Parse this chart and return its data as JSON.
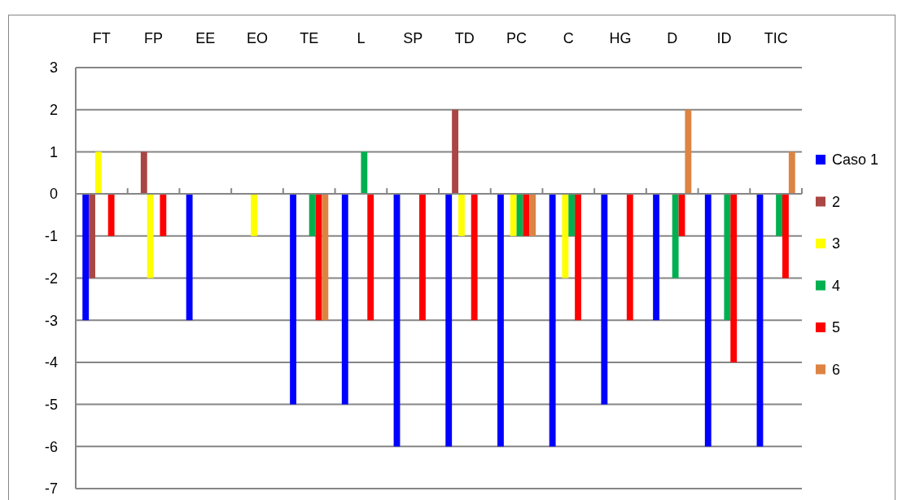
{
  "chart_data": {
    "type": "bar",
    "categories": [
      "FT",
      "FP",
      "EE",
      "EO",
      "TE",
      "L",
      "SP",
      "TD",
      "PC",
      "C",
      "HG",
      "D",
      "ID",
      "TIC"
    ],
    "series": [
      {
        "name": "Caso 1",
        "color": "#0000ff",
        "values": [
          -3,
          0,
          -3,
          0,
          -5,
          -5,
          -6,
          -6,
          -6,
          -6,
          -5,
          -3,
          -6,
          -6
        ]
      },
      {
        "name": "2",
        "color": "#aa4643",
        "values": [
          -2,
          1,
          0,
          0,
          0,
          0,
          0,
          2,
          0,
          0,
          0,
          0,
          0,
          0
        ]
      },
      {
        "name": "3",
        "color": "#ffff00",
        "values": [
          1,
          -2,
          0,
          -1,
          0,
          0,
          0,
          -1,
          -1,
          -2,
          0,
          0,
          0,
          0
        ]
      },
      {
        "name": "4",
        "color": "#00b050",
        "values": [
          0,
          0,
          0,
          0,
          -1,
          1,
          0,
          0,
          -1,
          -1,
          0,
          -2,
          -3,
          -1
        ]
      },
      {
        "name": "5",
        "color": "#ff0000",
        "values": [
          -1,
          -1,
          0,
          0,
          -3,
          -3,
          -3,
          -3,
          -1,
          -3,
          -3,
          -1,
          -4,
          -2
        ]
      },
      {
        "name": "6",
        "color": "#dd8443",
        "values": [
          0,
          0,
          0,
          0,
          -3,
          0,
          0,
          0,
          -1,
          0,
          0,
          2,
          0,
          1
        ]
      }
    ],
    "ylim": [
      -7,
      3
    ],
    "yticks": [
      -7,
      -6,
      -5,
      -4,
      -3,
      -2,
      -1,
      0,
      1,
      2,
      3
    ],
    "grid": "y",
    "legend": "right"
  }
}
